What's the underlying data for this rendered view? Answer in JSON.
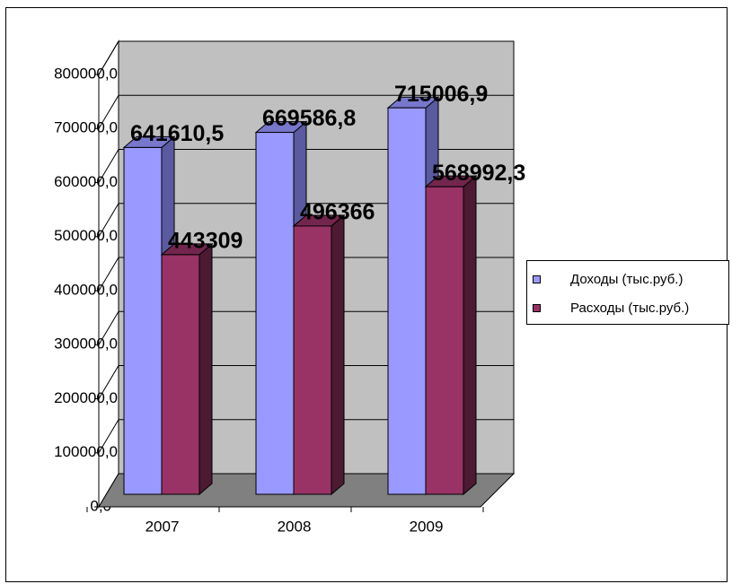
{
  "chart_data": {
    "type": "bar3d",
    "categories": [
      "2007",
      "2008",
      "2009"
    ],
    "series": [
      {
        "name": "Доходы (тыс.руб.)",
        "color": "#9999ff",
        "values": [
          641610.5,
          669586.8,
          715006.9
        ],
        "value_labels": [
          "641610,5",
          "669586,8",
          "715006,9"
        ]
      },
      {
        "name": "Расходы (тыс.руб.)",
        "color": "#993366",
        "values": [
          443309,
          496366,
          568992.3
        ],
        "value_labels": [
          "443309",
          "496366",
          "568992,3"
        ]
      }
    ],
    "ylim": [
      0,
      800000
    ],
    "yticks": [
      {
        "value": 0,
        "label": "0,0"
      },
      {
        "value": 100000,
        "label": "100000,0"
      },
      {
        "value": 200000,
        "label": "200000,0"
      },
      {
        "value": 300000,
        "label": "300000,0"
      },
      {
        "value": 400000,
        "label": "400000,0"
      },
      {
        "value": 500000,
        "label": "500000,0"
      },
      {
        "value": 600000,
        "label": "600000,0"
      },
      {
        "value": 700000,
        "label": "700000,0"
      },
      {
        "value": 800000,
        "label": "800000,0"
      }
    ],
    "grid": true,
    "legend": "right"
  }
}
